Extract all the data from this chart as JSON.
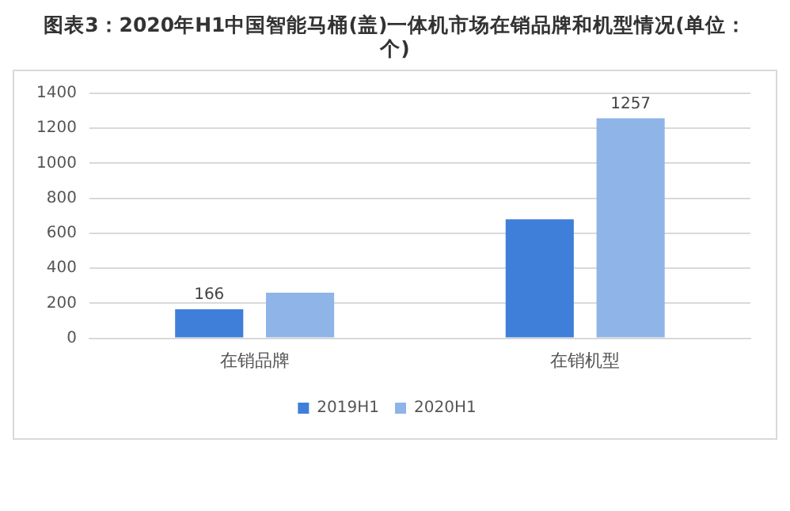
{
  "chart_data": {
    "type": "bar",
    "title": "图表3：2020年H1中国智能马桶(盖)一体机市场在销品牌和机型情况(单位：个)",
    "categories": [
      "在销品牌",
      "在销机型"
    ],
    "series": [
      {
        "name": "2019H1",
        "color": "#3f7fd9",
        "values": [
          166,
          680
        ],
        "value_labels": [
          "166",
          null
        ]
      },
      {
        "name": "2020H1",
        "color": "#8fb4e8",
        "values": [
          260,
          1257
        ],
        "value_labels": [
          null,
          "1257"
        ]
      }
    ],
    "ylim": [
      0,
      1400
    ],
    "yticks": [
      0,
      200,
      400,
      600,
      800,
      1000,
      1200,
      1400
    ],
    "grid": "y",
    "legend": "bottom"
  }
}
